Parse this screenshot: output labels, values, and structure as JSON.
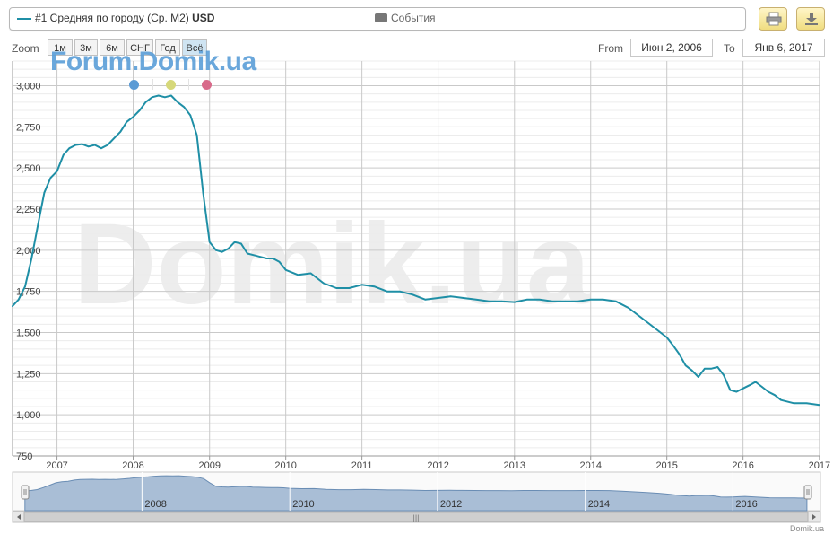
{
  "legend": {
    "series_name": "#1 Средняя по городу (Ср. М2)",
    "series_unit": "USD",
    "events_label": "События"
  },
  "toolbar": {
    "print_icon": "printer-icon",
    "download_icon": "download-icon"
  },
  "range_selector": {
    "zoom_label": "Zoom",
    "buttons": [
      "1м",
      "3м",
      "6м",
      "СНГ",
      "Год",
      "Всё"
    ],
    "active_button": "Всё",
    "from_label": "From",
    "from_value": "Июн 2, 2006",
    "to_label": "To",
    "to_value": "Янв 6, 2017"
  },
  "branding": {
    "overlay_logo": "Forum.Domik.ua",
    "watermark": "Domik.ua",
    "credit": "Domik.ua",
    "dot_colors": [
      "#5b9bd5",
      "#d6d87a",
      "#d86a8a"
    ]
  },
  "navigator": {
    "year_labels": [
      "2008",
      "2010",
      "2012",
      "2014",
      "2016"
    ],
    "scrollbar_grip": "|||"
  },
  "chart_data": {
    "type": "line",
    "title": "",
    "xlabel": "",
    "ylabel": "",
    "x_ticks": [
      "2007",
      "2008",
      "2009",
      "2010",
      "2011",
      "2012",
      "2013",
      "2014",
      "2015",
      "2016",
      "2017"
    ],
    "y_ticks": [
      "750",
      "1,000",
      "1,250",
      "1,500",
      "1,750",
      "2,000",
      "2,250",
      "2,500",
      "2,750",
      "3,000"
    ],
    "ylim": [
      750,
      3150
    ],
    "xlim": [
      "2006-06-02",
      "2017-01-06"
    ],
    "grid": true,
    "line_color": "#1f8fa6",
    "series": [
      {
        "name": "#1 Средняя по городу (Ср. М2)",
        "x": [
          "2006-06",
          "2006-07",
          "2006-08",
          "2006-09",
          "2006-10",
          "2006-11",
          "2006-12",
          "2007-01",
          "2007-02",
          "2007-03",
          "2007-04",
          "2007-05",
          "2007-06",
          "2007-07",
          "2007-08",
          "2007-09",
          "2007-10",
          "2007-11",
          "2007-12",
          "2008-01",
          "2008-02",
          "2008-03",
          "2008-04",
          "2008-05",
          "2008-06",
          "2008-07",
          "2008-08",
          "2008-09",
          "2008-10",
          "2008-11",
          "2008-12",
          "2009-01",
          "2009-02",
          "2009-03",
          "2009-04",
          "2009-05",
          "2009-06",
          "2009-07",
          "2009-08",
          "2009-09",
          "2009-10",
          "2009-11",
          "2009-12",
          "2010-01",
          "2010-03",
          "2010-05",
          "2010-07",
          "2010-09",
          "2010-11",
          "2011-01",
          "2011-03",
          "2011-05",
          "2011-07",
          "2011-09",
          "2011-11",
          "2012-01",
          "2012-03",
          "2012-05",
          "2012-07",
          "2012-09",
          "2012-11",
          "2013-01",
          "2013-03",
          "2013-05",
          "2013-07",
          "2013-09",
          "2013-11",
          "2014-01",
          "2014-03",
          "2014-05",
          "2014-07",
          "2014-09",
          "2014-11",
          "2015-01",
          "2015-02",
          "2015-03",
          "2015-04",
          "2015-05",
          "2015-06",
          "2015-07",
          "2015-08",
          "2015-09",
          "2015-10",
          "2015-11",
          "2015-12",
          "2016-01",
          "2016-02",
          "2016-03",
          "2016-04",
          "2016-05",
          "2016-06",
          "2016-07",
          "2016-09",
          "2016-11",
          "2017-01"
        ],
        "values": [
          1660,
          1700,
          1780,
          1950,
          2150,
          2350,
          2440,
          2480,
          2580,
          2620,
          2640,
          2645,
          2630,
          2640,
          2620,
          2640,
          2680,
          2720,
          2780,
          2810,
          2850,
          2900,
          2930,
          2940,
          2930,
          2940,
          2900,
          2870,
          2820,
          2700,
          2350,
          2050,
          2000,
          1990,
          2010,
          2050,
          2040,
          1980,
          1970,
          1960,
          1950,
          1950,
          1930,
          1880,
          1850,
          1860,
          1800,
          1770,
          1770,
          1790,
          1780,
          1750,
          1750,
          1730,
          1700,
          1710,
          1720,
          1710,
          1700,
          1690,
          1690,
          1685,
          1700,
          1700,
          1690,
          1690,
          1690,
          1700,
          1700,
          1690,
          1650,
          1590,
          1530,
          1470,
          1420,
          1370,
          1300,
          1270,
          1230,
          1280,
          1280,
          1290,
          1240,
          1150,
          1140,
          1160,
          1180,
          1200,
          1170,
          1140,
          1120,
          1090,
          1070,
          1070,
          1060
        ]
      }
    ]
  }
}
